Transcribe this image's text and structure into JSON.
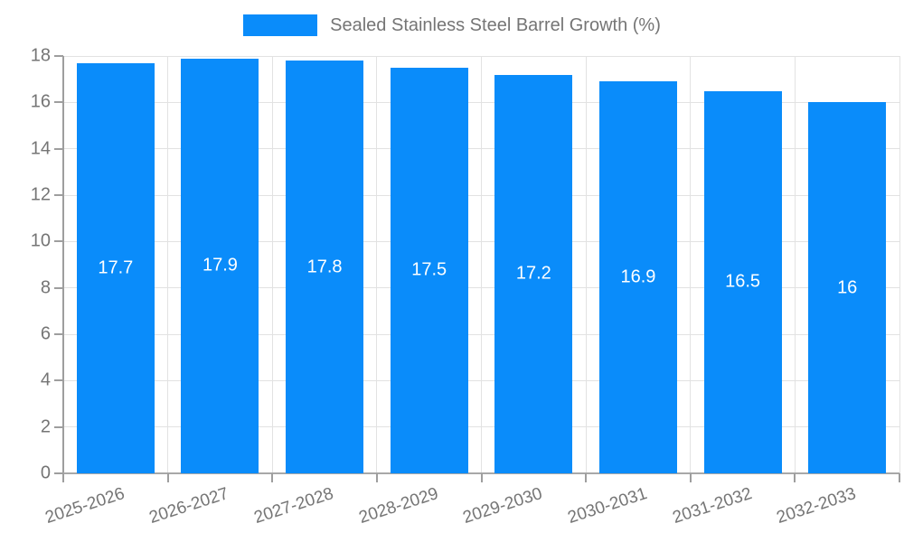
{
  "legend": {
    "label": "Sealed Stainless Steel Barrel Growth (%)"
  },
  "chart_data": {
    "type": "bar",
    "title": "",
    "xlabel": "",
    "ylabel": "",
    "categories": [
      "2025-2026",
      "2026-2027",
      "2027-2028",
      "2028-2029",
      "2029-2030",
      "2030-2031",
      "2031-2032",
      "2032-2033"
    ],
    "values": [
      17.7,
      17.9,
      17.8,
      17.5,
      17.2,
      16.9,
      16.5,
      16
    ],
    "value_labels": [
      "17.7",
      "17.9",
      "17.8",
      "17.5",
      "17.2",
      "16.9",
      "16.5",
      "16"
    ],
    "ylim": [
      0,
      18
    ],
    "ytick_step": 2,
    "ytick_labels": [
      "0",
      "2",
      "4",
      "6",
      "8",
      "10",
      "12",
      "14",
      "16",
      "18"
    ],
    "grid": true,
    "legend_position": "top-center",
    "x_label_rotation_deg": -18,
    "colors": {
      "bar": "#0a8cfa",
      "bar_value_text": "#ffffff",
      "axis_text": "#757575",
      "legend_text": "#757575",
      "gridline": "#e2e2e2",
      "axis_line": "#9e9e9e"
    }
  }
}
